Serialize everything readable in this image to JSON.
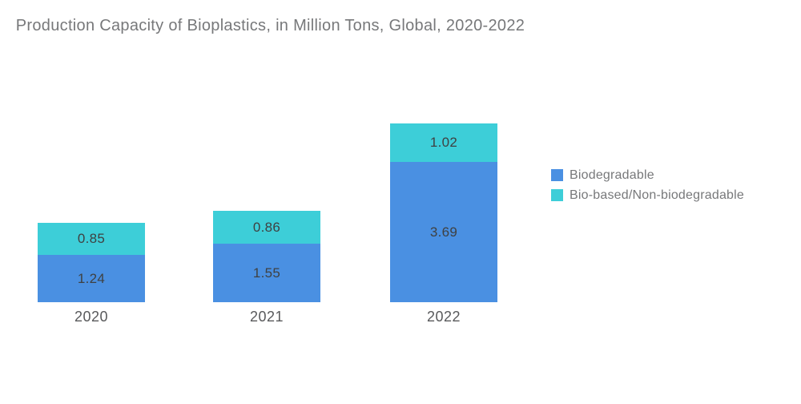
{
  "chart_data": {
    "type": "bar",
    "stacked": true,
    "title": "Production Capacity of Bioplastics, in Million Tons, Global, 2020-2022",
    "categories": [
      "2020",
      "2021",
      "2022"
    ],
    "series": [
      {
        "name": "Biodegradable",
        "color": "#4A90E2",
        "values": [
          1.24,
          1.55,
          3.69
        ]
      },
      {
        "name": "Bio-based/Non-biodegradable",
        "color": "#3DCED8",
        "values": [
          0.85,
          0.86,
          1.02
        ]
      }
    ],
    "value_labels_shown": true,
    "legend_position": "right",
    "xlabel": "",
    "ylabel": "",
    "grid": false,
    "axes_shown": false
  },
  "colors": {
    "background": "#FFFFFF",
    "title_text": "#77787A",
    "value_label_text": "#3F4142",
    "axis_label_text": "#58595B",
    "legend_text": "#77787A"
  }
}
